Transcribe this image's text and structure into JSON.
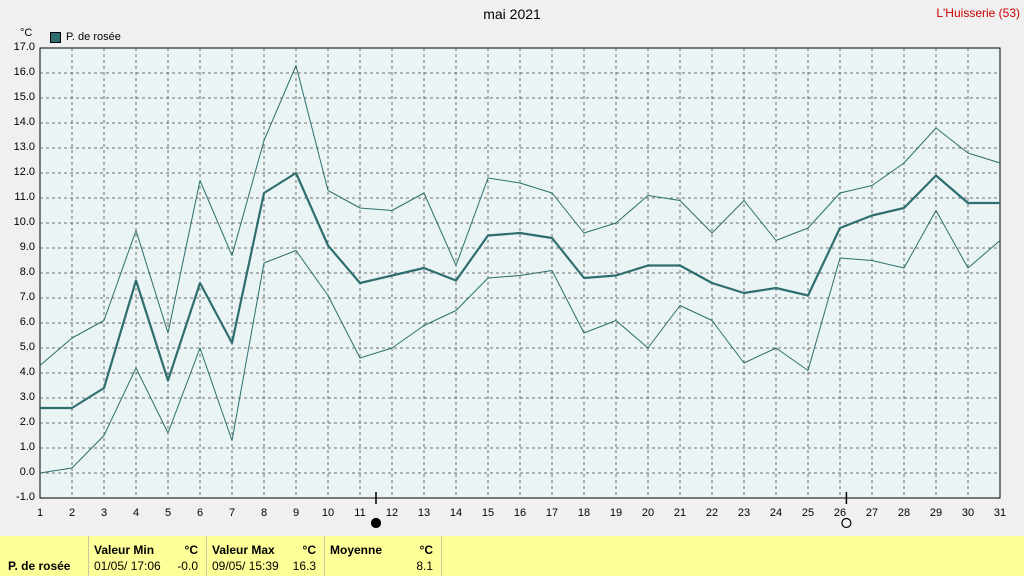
{
  "header": {
    "title": "mai 2021",
    "station": "L'Huisserie (53)",
    "unit": "°C"
  },
  "legend": {
    "label": "P. de rosée",
    "color": "#2e6e6e"
  },
  "footer": {
    "series_label": "P. de rosée",
    "min": {
      "header": "Valeur Min",
      "unit": "°C",
      "date": "01/05/ 17:06",
      "value": "-0.0"
    },
    "max": {
      "header": "Valeur Max",
      "unit": "°C",
      "date": "09/05/ 15:39",
      "value": "16.3"
    },
    "avg": {
      "header": "Moyenne",
      "unit": "°C",
      "value": "8.1"
    }
  },
  "chart_data": {
    "type": "line",
    "title": "mai 2021",
    "ylabel": "°C",
    "ylim": [
      -1.0,
      17.0
    ],
    "yticks": [
      "17.0",
      "16.0",
      "15.0",
      "14.0",
      "13.0",
      "12.0",
      "11.0",
      "10.0",
      "9.0",
      "8.0",
      "7.0",
      "6.0",
      "5.0",
      "4.0",
      "3.0",
      "2.0",
      "1.0",
      "0.0",
      "-1.0"
    ],
    "x": [
      1,
      2,
      3,
      4,
      5,
      6,
      7,
      8,
      9,
      10,
      11,
      12,
      13,
      14,
      15,
      16,
      17,
      18,
      19,
      20,
      21,
      22,
      23,
      24,
      25,
      26,
      27,
      28,
      29,
      30,
      31
    ],
    "grid": true,
    "legend_position": "top-left",
    "moon_phases": [
      {
        "day": 11.5,
        "phase": "new"
      },
      {
        "day": 26.2,
        "phase": "full"
      }
    ],
    "series": [
      {
        "name": "P. de rosée",
        "role": "mean",
        "color": "#2e6e6e",
        "values": [
          2.6,
          2.6,
          3.4,
          7.7,
          3.7,
          7.6,
          5.2,
          11.2,
          12.0,
          9.1,
          7.6,
          7.9,
          8.2,
          7.7,
          9.5,
          9.6,
          9.4,
          7.8,
          7.9,
          8.3,
          8.3,
          7.6,
          7.2,
          7.4,
          7.1,
          9.8,
          10.3,
          10.6,
          11.9,
          10.8,
          10.8
        ]
      },
      {
        "role": "max",
        "color": "#2e6e6e",
        "values": [
          4.3,
          5.4,
          6.1,
          9.7,
          5.6,
          11.7,
          8.7,
          13.3,
          16.3,
          11.3,
          10.6,
          10.5,
          11.2,
          8.3,
          11.8,
          11.6,
          11.2,
          9.6,
          10.0,
          11.1,
          10.9,
          9.6,
          10.9,
          9.3,
          9.8,
          11.2,
          11.5,
          12.4,
          13.8,
          12.8,
          12.4
        ]
      },
      {
        "role": "min",
        "color": "#2e6e6e",
        "values": [
          0.0,
          0.2,
          1.5,
          4.2,
          1.6,
          5.0,
          1.3,
          8.4,
          8.9,
          7.1,
          4.6,
          5.0,
          5.9,
          6.5,
          7.8,
          7.9,
          8.1,
          5.6,
          6.1,
          5.0,
          6.7,
          6.1,
          4.4,
          5.0,
          4.1,
          8.6,
          8.5,
          8.2,
          10.5,
          8.2,
          9.3
        ]
      }
    ]
  }
}
